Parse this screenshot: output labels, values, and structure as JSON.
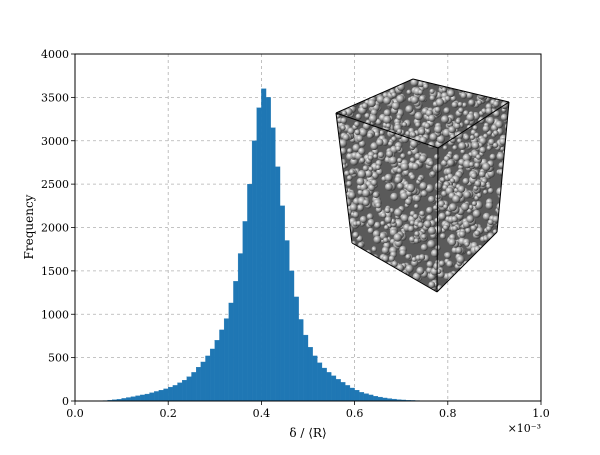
{
  "chart_data": {
    "type": "bar",
    "title": "",
    "xlabel": "δ / ⟨R⟩",
    "ylabel": "Frequency",
    "x_multiplier": "×10⁻³",
    "xlim": [
      0.0,
      1.0
    ],
    "ylim": [
      0,
      4000
    ],
    "x_tick_labels": [
      "0.0",
      "0.2",
      "0.4",
      "0.6",
      "0.8",
      "1.0"
    ],
    "y_tick_labels": [
      "0",
      "500",
      "1000",
      "1500",
      "2000",
      "2500",
      "3000",
      "3500",
      "4000"
    ],
    "grid": true,
    "grid_style": "dashed",
    "bar_color": "#1f77b4",
    "bin_width": 0.01,
    "bin_centers": [
      0.065,
      0.075,
      0.085,
      0.095,
      0.105,
      0.115,
      0.125,
      0.135,
      0.145,
      0.155,
      0.165,
      0.175,
      0.185,
      0.195,
      0.205,
      0.215,
      0.225,
      0.235,
      0.245,
      0.255,
      0.265,
      0.275,
      0.285,
      0.295,
      0.305,
      0.315,
      0.325,
      0.335,
      0.345,
      0.355,
      0.365,
      0.375,
      0.385,
      0.395,
      0.405,
      0.415,
      0.425,
      0.435,
      0.445,
      0.455,
      0.465,
      0.475,
      0.485,
      0.495,
      0.505,
      0.515,
      0.525,
      0.535,
      0.545,
      0.555,
      0.565,
      0.575,
      0.585,
      0.595,
      0.605,
      0.615,
      0.625,
      0.635,
      0.645,
      0.655,
      0.665,
      0.675,
      0.685,
      0.695,
      0.705,
      0.715,
      0.725,
      0.735,
      0.745,
      0.755,
      0.765,
      0.775
    ],
    "values": [
      5,
      10,
      15,
      20,
      30,
      40,
      50,
      60,
      70,
      80,
      95,
      110,
      125,
      140,
      160,
      180,
      210,
      240,
      280,
      330,
      390,
      450,
      520,
      600,
      700,
      820,
      950,
      1130,
      1380,
      1700,
      2070,
      2500,
      3000,
      3380,
      3600,
      3500,
      3150,
      2700,
      2250,
      1850,
      1500,
      1200,
      940,
      760,
      620,
      520,
      440,
      380,
      330,
      290,
      250,
      215,
      180,
      150,
      125,
      100,
      85,
      70,
      55,
      45,
      35,
      28,
      22,
      16,
      12,
      9,
      7,
      5,
      3,
      2,
      1,
      1
    ],
    "inset": {
      "type": "image",
      "description_icon": "particle-packing-cube-icon"
    }
  }
}
